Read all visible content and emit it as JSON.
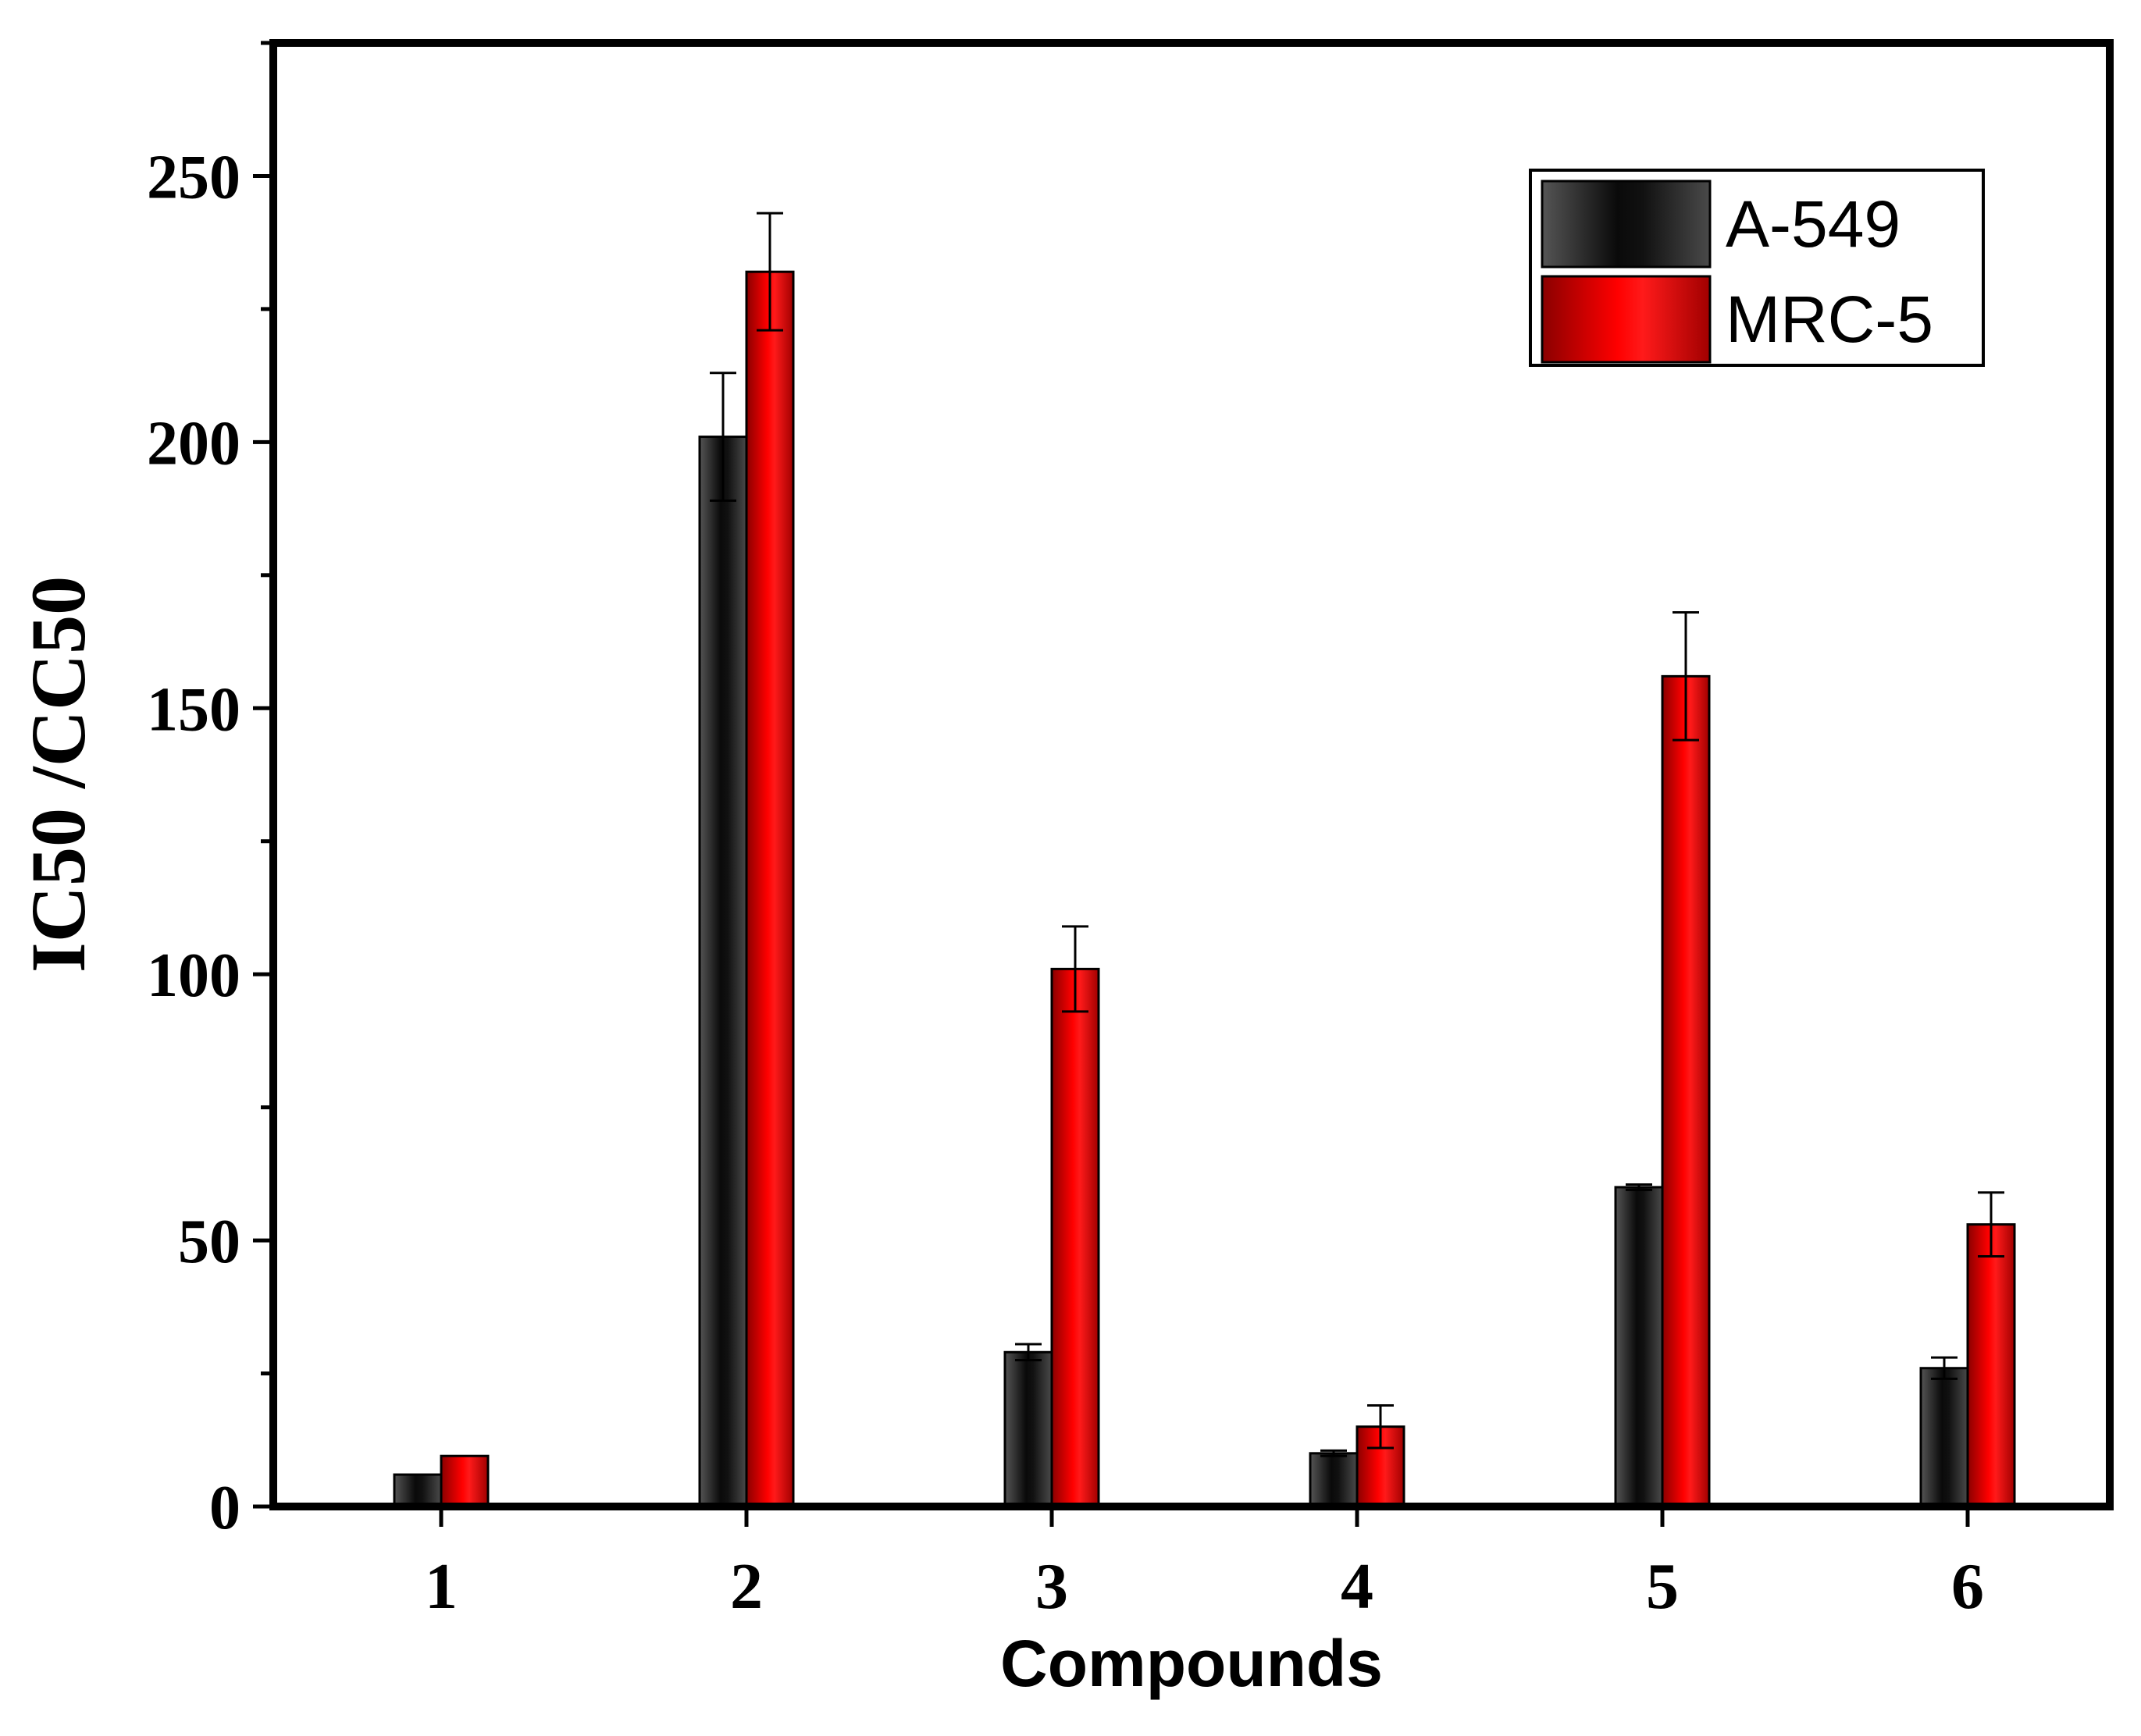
{
  "chart_data": {
    "type": "bar",
    "xlabel": "Compounds",
    "ylabel": "IC50 /CC50",
    "categories": [
      "1",
      "2",
      "3",
      "4",
      "5",
      "6"
    ],
    "ylim": [
      0,
      275
    ],
    "yticks": [
      0,
      50,
      100,
      150,
      200,
      250
    ],
    "y_minor_step": 25,
    "grid": false,
    "legend_position": "top-right",
    "series": [
      {
        "name": "A-549",
        "color": "#1a1a1a",
        "values": [
          6,
          201,
          29,
          10,
          60,
          26
        ],
        "errors": [
          0,
          12,
          1.5,
          0.5,
          0.5,
          2
        ]
      },
      {
        "name": "MRC-5",
        "color": "#e00000",
        "values": [
          9.5,
          232,
          101,
          15,
          156,
          53
        ],
        "errors": [
          0,
          11,
          8,
          4,
          12,
          6
        ]
      }
    ]
  }
}
